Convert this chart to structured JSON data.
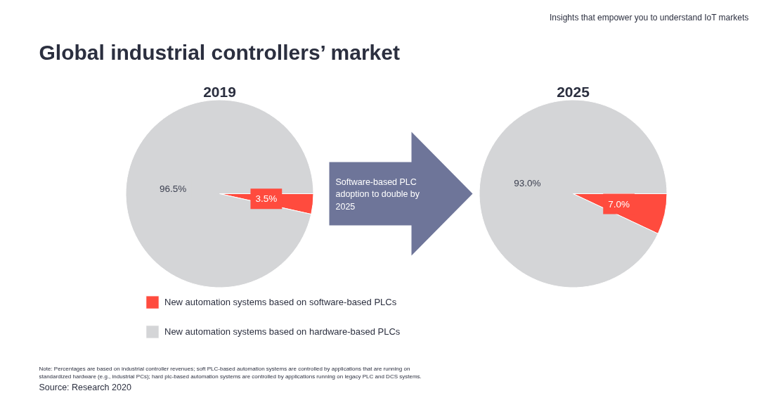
{
  "chart_data": [
    {
      "type": "pie",
      "title": "2019",
      "categories": [
        "New automation systems based on software-based PLCs",
        "New automation systems based on hardware-based PLCs"
      ],
      "values": [
        3.5,
        96.5
      ],
      "colors": [
        "#ff4b3e",
        "#d4d5d7"
      ],
      "value_labels": [
        "3.5%",
        "96.5%"
      ],
      "legend": "bottom",
      "annotations": [
        "Global industrial controllers’ market",
        "Software-based PLC adoption to double by 2025",
        "Note: Percentages are based on industrial controller revenues; soft PLC-based automation systems are controlled by applications that are running on standardized hardware (e.g., industrial PCs); hard plc-based automation systems are controlled by applications running on legacy PLC and DCS systems.",
        "Source: Research 2020"
      ]
    },
    {
      "type": "pie",
      "title": "2025",
      "categories": [
        null,
        null
      ],
      "values": [
        7.0,
        93.0
      ],
      "colors": [
        "#ff4b3e",
        "#d4d5d7"
      ],
      "value_labels": [
        "7.0%",
        "93.0%"
      ],
      "annotations": [
        "Insights that empower you to understand IoT markets"
      ]
    }
  ]
}
